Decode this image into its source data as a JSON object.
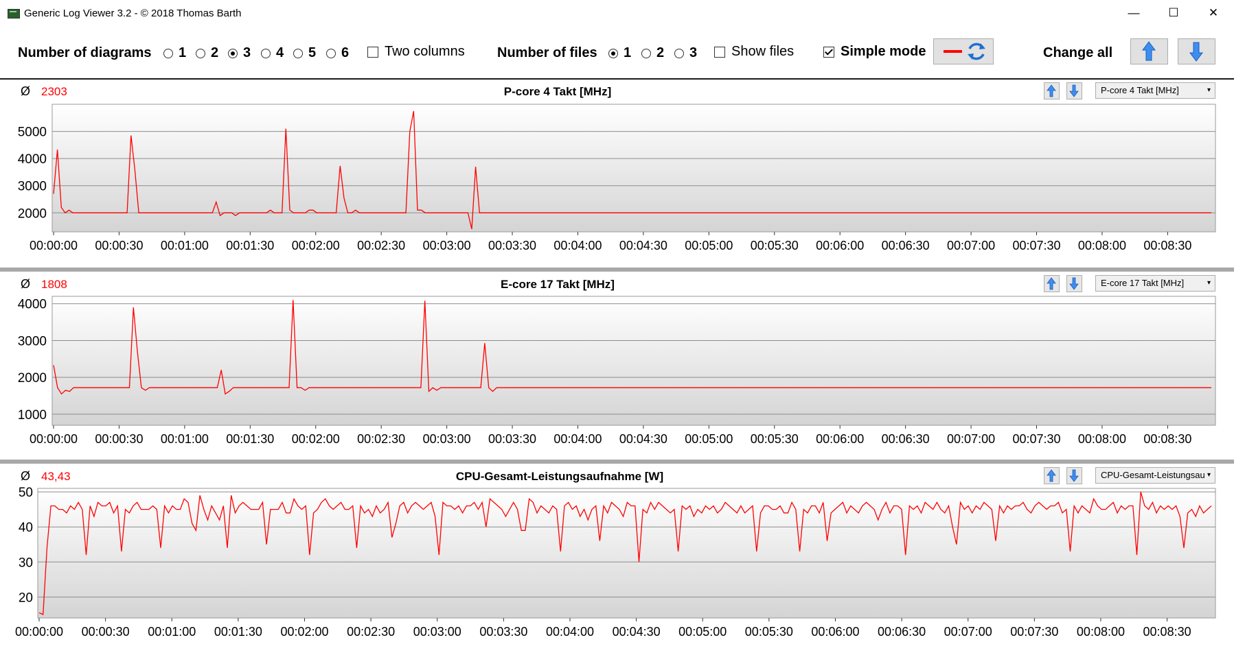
{
  "window": {
    "title": "Generic Log Viewer 3.2 - © 2018 Thomas Barth",
    "minimize_glyph": "—",
    "maximize_glyph": "☐",
    "close_glyph": "✕"
  },
  "toolbar": {
    "num_diagrams_label": "Number of diagrams",
    "diagram_options": [
      "1",
      "2",
      "3",
      "4",
      "5",
      "6"
    ],
    "diagrams_selected": "3",
    "two_columns_label": "Two columns",
    "two_columns_checked": false,
    "num_files_label": "Number of files",
    "file_options": [
      "1",
      "2",
      "3"
    ],
    "files_selected": "1",
    "show_files_label": "Show files",
    "show_files_checked": false,
    "simple_mode_label": "Simple mode",
    "simple_mode_checked": true,
    "change_all_label": "Change all",
    "line_color": "#ff0000",
    "icons": [
      "red-line-icon",
      "refresh-icon",
      "arrow-up-icon",
      "arrow-down-icon"
    ]
  },
  "chart_data": [
    {
      "type": "line",
      "title": "P-core 4 Takt [MHz]",
      "average_symbol": "Ø",
      "average": "2303",
      "selector_value": "P-core 4 Takt [MHz]",
      "ylim": [
        1300,
        6000
      ],
      "yticks": [
        2000,
        3000,
        4000,
        5000
      ],
      "xticks": [
        "00:00:00",
        "00:00:30",
        "00:01:00",
        "00:01:30",
        "00:02:00",
        "00:02:30",
        "00:03:00",
        "00:03:30",
        "00:04:00",
        "00:04:30",
        "00:05:00",
        "00:05:30",
        "00:06:00",
        "00:06:30",
        "00:07:00",
        "00:07:30",
        "00:08:00",
        "00:08:30"
      ],
      "x_seconds_max": 530,
      "grid": true,
      "series": [
        {
          "color": "#ff0000",
          "values": [
            2700,
            4330,
            2200,
            2000,
            2100,
            2000,
            2000,
            2000,
            2000,
            2000,
            2000,
            2000,
            2000,
            2000,
            2000,
            2000,
            2000,
            2000,
            2000,
            2000,
            4850,
            3580,
            2000,
            2000,
            2000,
            2000,
            2000,
            2000,
            2000,
            2000,
            2000,
            2000,
            2000,
            2000,
            2000,
            2000,
            2000,
            2000,
            2000,
            2000,
            2000,
            2000,
            2400,
            1900,
            2000,
            2000,
            2000,
            1900,
            2000,
            2000,
            2000,
            2000,
            2000,
            2000,
            2000,
            2000,
            2100,
            2000,
            2000,
            2000,
            5100,
            2100,
            2000,
            2000,
            2000,
            2000,
            2100,
            2100,
            2000,
            2000,
            2000,
            2000,
            2000,
            2000,
            3730,
            2550,
            2000,
            2000,
            2100,
            2000,
            2000,
            2000,
            2000,
            2000,
            2000,
            2000,
            2000,
            2000,
            2000,
            2000,
            2000,
            2000,
            5000,
            5750,
            2100,
            2100,
            2000,
            2000,
            2000,
            2000,
            2000,
            2000,
            2000,
            2000,
            2000,
            2000,
            2000,
            2000,
            1400,
            3700,
            2000,
            2000,
            2000,
            2000,
            2000,
            2000,
            2000,
            2000,
            2000,
            2000,
            2000,
            2000,
            2000,
            2000,
            2000,
            2000,
            2000,
            2000,
            2000,
            2000,
            2000,
            2000,
            2000,
            2000,
            2000,
            2000,
            2000,
            2000,
            2000,
            2000,
            2000,
            2000,
            2000,
            2000,
            2000,
            2000,
            2000,
            2000,
            2000,
            2000,
            2000,
            2000,
            2000,
            2000,
            2000,
            2000,
            2000,
            2000,
            2000,
            2000,
            2000,
            2000,
            2000,
            2000,
            2000,
            2000,
            2000,
            2000,
            2000,
            2000,
            2000,
            2000,
            2000,
            2000,
            2000,
            2000,
            2000,
            2000,
            2000,
            2000,
            2000,
            2000,
            2000,
            2000,
            2000,
            2000,
            2000,
            2000,
            2000,
            2000,
            2000,
            2000,
            2000,
            2000,
            2000,
            2000,
            2000,
            2000,
            2000,
            2000,
            2000,
            2000,
            2000,
            2000,
            2000,
            2000,
            2000,
            2000,
            2000,
            2000,
            2000,
            2000,
            2000,
            2000,
            2000,
            2000,
            2000,
            2000,
            2000,
            2000,
            2000,
            2000,
            2000,
            2000,
            2000,
            2000,
            2000,
            2000,
            2000,
            2000,
            2000,
            2000,
            2000,
            2000,
            2000,
            2000,
            2000,
            2000,
            2000,
            2000,
            2000,
            2000,
            2000,
            2000,
            2000,
            2000,
            2000,
            2000,
            2000,
            2000,
            2000,
            2000,
            2000,
            2000,
            2000,
            2000,
            2000,
            2000,
            2000,
            2000,
            2000,
            2000,
            2000,
            2000,
            2000,
            2000,
            2000,
            2000,
            2000,
            2000,
            2000,
            2000,
            2000,
            2000,
            2000,
            2000,
            2000,
            2000,
            2000,
            2000,
            2000,
            2000,
            2000,
            2000,
            2000,
            2000,
            2000,
            2000,
            2000,
            2000,
            2000,
            2000,
            2000,
            2000,
            2000,
            2000,
            2000,
            2000,
            2000,
            2000
          ]
        }
      ]
    },
    {
      "type": "line",
      "title": "E-core 17 Takt [MHz]",
      "average_symbol": "Ø",
      "average": "1808",
      "selector_value": "E-core 17 Takt [MHz]",
      "ylim": [
        700,
        4200
      ],
      "yticks": [
        1000,
        2000,
        3000,
        4000
      ],
      "xticks": [
        "00:00:00",
        "00:00:30",
        "00:01:00",
        "00:01:30",
        "00:02:00",
        "00:02:30",
        "00:03:00",
        "00:03:30",
        "00:04:00",
        "00:04:30",
        "00:05:00",
        "00:05:30",
        "00:06:00",
        "00:06:30",
        "00:07:00",
        "00:07:30",
        "00:08:00",
        "00:08:30"
      ],
      "x_seconds_max": 530,
      "grid": true,
      "series": [
        {
          "color": "#ff0000",
          "values": [
            2330,
            1720,
            1550,
            1650,
            1620,
            1720,
            1720,
            1720,
            1720,
            1720,
            1720,
            1720,
            1720,
            1720,
            1720,
            1720,
            1720,
            1720,
            1720,
            1720,
            3900,
            2700,
            1720,
            1650,
            1720,
            1720,
            1720,
            1720,
            1720,
            1720,
            1720,
            1720,
            1720,
            1720,
            1720,
            1720,
            1720,
            1720,
            1720,
            1720,
            1720,
            1720,
            2200,
            1550,
            1620,
            1720,
            1720,
            1720,
            1720,
            1720,
            1720,
            1720,
            1720,
            1720,
            1720,
            1720,
            1720,
            1720,
            1720,
            1720,
            4100,
            1720,
            1720,
            1650,
            1720,
            1720,
            1720,
            1720,
            1720,
            1720,
            1720,
            1720,
            1720,
            1720,
            1720,
            1720,
            1720,
            1720,
            1720,
            1720,
            1720,
            1720,
            1720,
            1720,
            1720,
            1720,
            1720,
            1720,
            1720,
            1720,
            1720,
            1720,
            1720,
            4080,
            1620,
            1720,
            1650,
            1720,
            1720,
            1720,
            1720,
            1720,
            1720,
            1720,
            1720,
            1720,
            1720,
            1720,
            2930,
            1720,
            1620,
            1720,
            1720,
            1720,
            1720,
            1720,
            1720,
            1720,
            1720,
            1720,
            1720,
            1720,
            1720,
            1720,
            1720,
            1720,
            1720,
            1720,
            1720,
            1720,
            1720,
            1720,
            1720,
            1720,
            1720,
            1720,
            1720,
            1720,
            1720,
            1720,
            1720,
            1720,
            1720,
            1720,
            1720,
            1720,
            1720,
            1720,
            1720,
            1720,
            1720,
            1720,
            1720,
            1720,
            1720,
            1720,
            1720,
            1720,
            1720,
            1720,
            1720,
            1720,
            1720,
            1720,
            1720,
            1720,
            1720,
            1720,
            1720,
            1720,
            1720,
            1720,
            1720,
            1720,
            1720,
            1720,
            1720,
            1720,
            1720,
            1720,
            1720,
            1720,
            1720,
            1720,
            1720,
            1720,
            1720,
            1720,
            1720,
            1720,
            1720,
            1720,
            1720,
            1720,
            1720,
            1720,
            1720,
            1720,
            1720,
            1720,
            1720,
            1720,
            1720,
            1720,
            1720,
            1720,
            1720,
            1720,
            1720,
            1720,
            1720,
            1720,
            1720,
            1720,
            1720,
            1720,
            1720,
            1720,
            1720,
            1720,
            1720,
            1720,
            1720,
            1720,
            1720,
            1720,
            1720,
            1720,
            1720,
            1720,
            1720,
            1720,
            1720,
            1720,
            1720,
            1720,
            1720,
            1720,
            1720,
            1720,
            1720,
            1720,
            1720,
            1720,
            1720,
            1720,
            1720,
            1720,
            1720,
            1720,
            1720,
            1720,
            1720,
            1720,
            1720,
            1720,
            1720,
            1720,
            1720,
            1720,
            1720,
            1720,
            1720,
            1720,
            1720,
            1720,
            1720,
            1720,
            1720,
            1720,
            1720,
            1720,
            1720,
            1720,
            1720,
            1720,
            1720,
            1720,
            1720,
            1720,
            1720,
            1720,
            1720,
            1720,
            1720,
            1720,
            1720,
            1720,
            1720,
            1720,
            1720
          ]
        }
      ]
    },
    {
      "type": "line",
      "title": "CPU-Gesamt-Leistungsaufnahme [W]",
      "average_symbol": "Ø",
      "average": "43,43",
      "selector_value": "CPU-Gesamt-Leistungsau",
      "ylim": [
        14,
        51
      ],
      "yticks": [
        20,
        30,
        40,
        50
      ],
      "xticks": [
        "00:00:00",
        "00:00:30",
        "00:01:00",
        "00:01:30",
        "00:02:00",
        "00:02:30",
        "00:03:00",
        "00:03:30",
        "00:04:00",
        "00:04:30",
        "00:05:00",
        "00:05:30",
        "00:06:00",
        "00:06:30",
        "00:07:00",
        "00:07:30",
        "00:08:00",
        "00:08:30"
      ],
      "x_seconds_max": 530,
      "grid": true,
      "series": [
        {
          "color": "#ff0000",
          "values": [
            15.5,
            15,
            34,
            46,
            46,
            45,
            45,
            44,
            46,
            45,
            47,
            45,
            32,
            46,
            43,
            47,
            46,
            46,
            47,
            44,
            46,
            33,
            45,
            44,
            46,
            47,
            45,
            45,
            45,
            46,
            45,
            34,
            46,
            44,
            46,
            45,
            45,
            48,
            47,
            41,
            39,
            49,
            45,
            42,
            46,
            44,
            42,
            46,
            34,
            49,
            44,
            46,
            47,
            46,
            45,
            45,
            45,
            47,
            35,
            45,
            45,
            45,
            47,
            44,
            44,
            48,
            46,
            45,
            46,
            32,
            44,
            45,
            47,
            48,
            46,
            45,
            46,
            47,
            45,
            45,
            46,
            34,
            46,
            44,
            45,
            43,
            46,
            44,
            45,
            47,
            37,
            41,
            46,
            47,
            44,
            46,
            47,
            46,
            45,
            46,
            47,
            43,
            32,
            47,
            46,
            46,
            45,
            46,
            44,
            46,
            46,
            47,
            45,
            47,
            40,
            48,
            47,
            46,
            45,
            43,
            45,
            47,
            45,
            39,
            39,
            48,
            47,
            44,
            46,
            45,
            44,
            46,
            45,
            33,
            46,
            47,
            45,
            46,
            43,
            45,
            42,
            45,
            46,
            36,
            46,
            44,
            47,
            46,
            45,
            43,
            47,
            46,
            46,
            30,
            45,
            44,
            47,
            45,
            47,
            46,
            45,
            44,
            45,
            33,
            46,
            45,
            46,
            43,
            45,
            44,
            46,
            45,
            46,
            44,
            45,
            47,
            46,
            45,
            44,
            46,
            44,
            45,
            46,
            33,
            44,
            46,
            46,
            45,
            45,
            46,
            44,
            44,
            47,
            45,
            33,
            45,
            44,
            46,
            46,
            44,
            47,
            36,
            44,
            45,
            46,
            47,
            44,
            46,
            45,
            44,
            46,
            47,
            46,
            45,
            42,
            45,
            47,
            44,
            46,
            46,
            45,
            32,
            46,
            45,
            46,
            44,
            47,
            46,
            45,
            47,
            45,
            44,
            46,
            40,
            35,
            47,
            45,
            46,
            44,
            46,
            45,
            47,
            46,
            45,
            36,
            46,
            44,
            46,
            45,
            46,
            46,
            47,
            45,
            44,
            46,
            47,
            46,
            45,
            46,
            46,
            47,
            44,
            45,
            33,
            46,
            44,
            46,
            45,
            44,
            48,
            46,
            45,
            45,
            46,
            47,
            44,
            46,
            45,
            46,
            46,
            32,
            50,
            46,
            45,
            47,
            44,
            46,
            45,
            46,
            45,
            46,
            43,
            34,
            44,
            45,
            43,
            46,
            44,
            45,
            46
          ]
        }
      ]
    }
  ]
}
